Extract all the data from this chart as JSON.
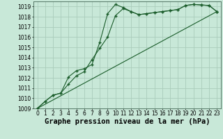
{
  "xlabel": "Graphe pression niveau de la mer (hPa)",
  "bg_color": "#c8e8d8",
  "grid_color": "#aaccbb",
  "line_color": "#1a5c2a",
  "marker": "+",
  "xlim": [
    -0.5,
    23.5
  ],
  "ylim": [
    1009,
    1019.5
  ],
  "yticks": [
    1009,
    1010,
    1011,
    1012,
    1013,
    1014,
    1015,
    1016,
    1017,
    1018,
    1019
  ],
  "xticks": [
    0,
    1,
    2,
    3,
    4,
    5,
    6,
    7,
    8,
    9,
    10,
    11,
    12,
    13,
    14,
    15,
    16,
    17,
    18,
    19,
    20,
    21,
    22,
    23
  ],
  "series1_x": [
    0,
    1,
    2,
    3,
    4,
    5,
    6,
    7,
    8,
    9,
    10,
    11,
    12,
    13,
    14,
    15,
    16,
    17,
    18,
    19,
    20,
    21,
    22,
    23
  ],
  "series1_y": [
    1009.0,
    1009.7,
    1010.3,
    1010.5,
    1011.4,
    1012.2,
    1012.6,
    1013.8,
    1014.9,
    1016.0,
    1018.1,
    1018.8,
    1018.5,
    1018.2,
    1018.3,
    1018.4,
    1018.5,
    1018.6,
    1018.7,
    1019.1,
    1019.2,
    1019.15,
    1019.1,
    1018.5
  ],
  "series2_x": [
    0,
    1,
    2,
    3,
    4,
    5,
    6,
    7,
    8,
    9,
    10,
    11,
    12,
    13,
    14,
    15,
    16,
    17,
    18,
    19,
    20,
    21,
    22,
    23
  ],
  "series2_y": [
    1009.0,
    1009.7,
    1010.3,
    1010.5,
    1012.1,
    1012.7,
    1012.9,
    1013.3,
    1015.5,
    1018.3,
    1019.2,
    1018.9,
    1018.5,
    1018.2,
    1018.3,
    1018.4,
    1018.5,
    1018.6,
    1018.7,
    1019.1,
    1019.2,
    1019.15,
    1019.1,
    1018.5
  ],
  "series3_x": [
    0,
    23
  ],
  "series3_y": [
    1009.0,
    1018.5
  ],
  "tick_fontsize": 5.5,
  "xlabel_fontsize": 7.5,
  "marker_size": 3
}
